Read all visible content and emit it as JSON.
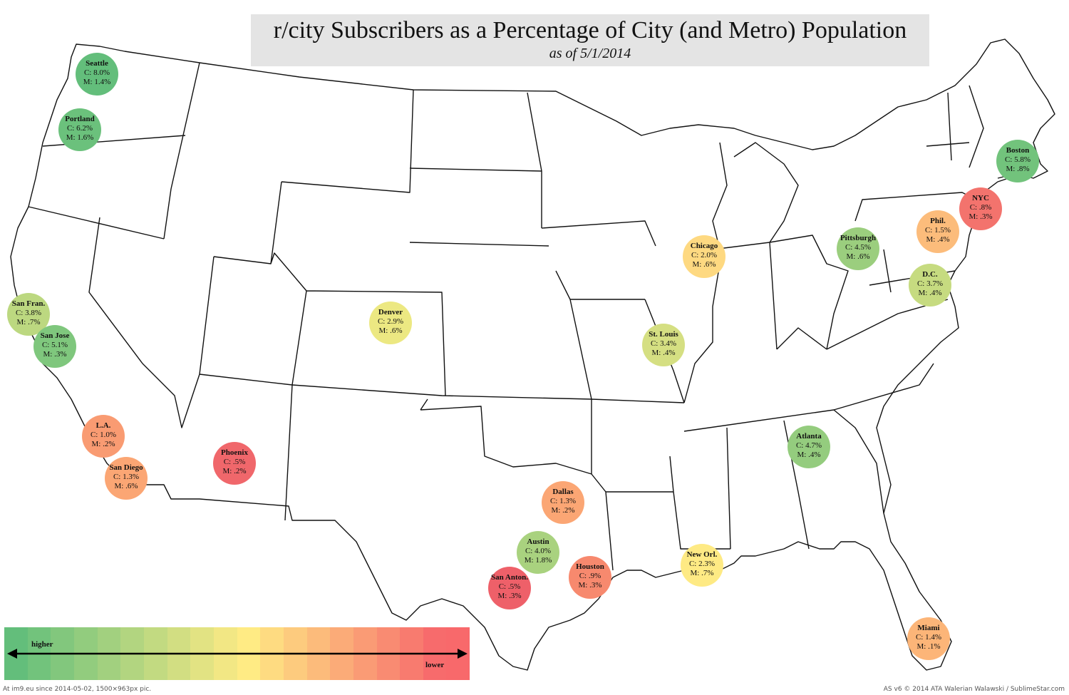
{
  "title": "r/city Subscribers as a Percentage of City (and Metro) Population",
  "subtitle": "as of 5/1/2014",
  "cities": [
    {
      "id": "seattle",
      "name": "Seattle",
      "city": "C: 8.0%",
      "metro": "M: 1.4%",
      "color": "#63be7b"
    },
    {
      "id": "portland",
      "name": "Portland",
      "city": "C: 6.2%",
      "metro": "M: 1.6%",
      "color": "#6bc17c"
    },
    {
      "id": "san-fran",
      "name": "San Fran.",
      "city": "C: 3.8%",
      "metro": "M: .7%",
      "color": "#bcd880"
    },
    {
      "id": "san-jose",
      "name": "San Jose",
      "city": "C: 5.1%",
      "metro": "M: .3%",
      "color": "#7fc77d"
    },
    {
      "id": "la",
      "name": "L.A.",
      "city": "C: 1.0%",
      "metro": "M: .2%",
      "color": "#f99b72"
    },
    {
      "id": "san-diego",
      "name": "San Diego",
      "city": "C: 1.3%",
      "metro": "M: .6%",
      "color": "#fba674"
    },
    {
      "id": "phoenix",
      "name": "Phoenix",
      "city": "C: .5%",
      "metro": "M: .2%",
      "color": "#f0676b"
    },
    {
      "id": "denver",
      "name": "Denver",
      "city": "C: 2.9%",
      "metro": "M: .6%",
      "color": "#ece882"
    },
    {
      "id": "dallas",
      "name": "Dallas",
      "city": "C: 1.3%",
      "metro": "M: .2%",
      "color": "#fba674"
    },
    {
      "id": "austin",
      "name": "Austin",
      "city": "C: 4.0%",
      "metro": "M: 1.8%",
      "color": "#a9d27f"
    },
    {
      "id": "san-antonio",
      "name": "San Anton.",
      "city": "C: .5%",
      "metro": "M: .3%",
      "color": "#ee6069"
    },
    {
      "id": "houston",
      "name": "Houston",
      "city": "C: .9%",
      "metro": "M: .3%",
      "color": "#f7896e"
    },
    {
      "id": "new-orleans",
      "name": "New Orl.",
      "city": "C: 2.3%",
      "metro": "M: .7%",
      "color": "#feea84"
    },
    {
      "id": "chicago",
      "name": "Chicago",
      "city": "C: 2.0%",
      "metro": "M: .6%",
      "color": "#fed981"
    },
    {
      "id": "st-louis",
      "name": "St. Louis",
      "city": "C: 3.4%",
      "metro": "M: .4%",
      "color": "#d5df82"
    },
    {
      "id": "atlanta",
      "name": "Atlanta",
      "city": "C: 4.7%",
      "metro": "M: .4%",
      "color": "#94cc7e"
    },
    {
      "id": "pittsburgh",
      "name": "Pittsburgh",
      "city": "C: 4.5%",
      "metro": "M: .6%",
      "color": "#9bce7e"
    },
    {
      "id": "dc",
      "name": "D.C.",
      "city": "C: 3.7%",
      "metro": "M: .4%",
      "color": "#c6db80"
    },
    {
      "id": "phil",
      "name": "Phil.",
      "city": "C: 1.5%",
      "metro": "M: .4%",
      "color": "#fcbc7b"
    },
    {
      "id": "nyc",
      "name": "NYC",
      "city": "C: .8%",
      "metro": "M: .3%",
      "color": "#f3736d"
    },
    {
      "id": "boston",
      "name": "Boston",
      "city": "C: 5.8%",
      "metro": "M: .8%",
      "color": "#72c37c"
    },
    {
      "id": "miami",
      "name": "Miami",
      "city": "C: 1.4%",
      "metro": "M: .1%",
      "color": "#fcb578"
    }
  ],
  "legend": {
    "higher": "higher",
    "lower": "lower",
    "colors": [
      "#63be7b",
      "#72c37c",
      "#82c77d",
      "#92cc7e",
      "#a2d07f",
      "#b2d580",
      "#c2da81",
      "#d2de82",
      "#e2e383",
      "#f2e784",
      "#ffeb84",
      "#fedb81",
      "#fdcb7e",
      "#fcbb7b",
      "#fbab78",
      "#fa9b75",
      "#f98b72",
      "#f87b6f",
      "#f76b6c",
      "#f8696b"
    ]
  },
  "footer": {
    "left": "At im9.eu since 2014-05-02, 1500×963px pic.",
    "right": "AS v6 © 2014 ATA Walerian Walawski / SublimeStar.com"
  }
}
